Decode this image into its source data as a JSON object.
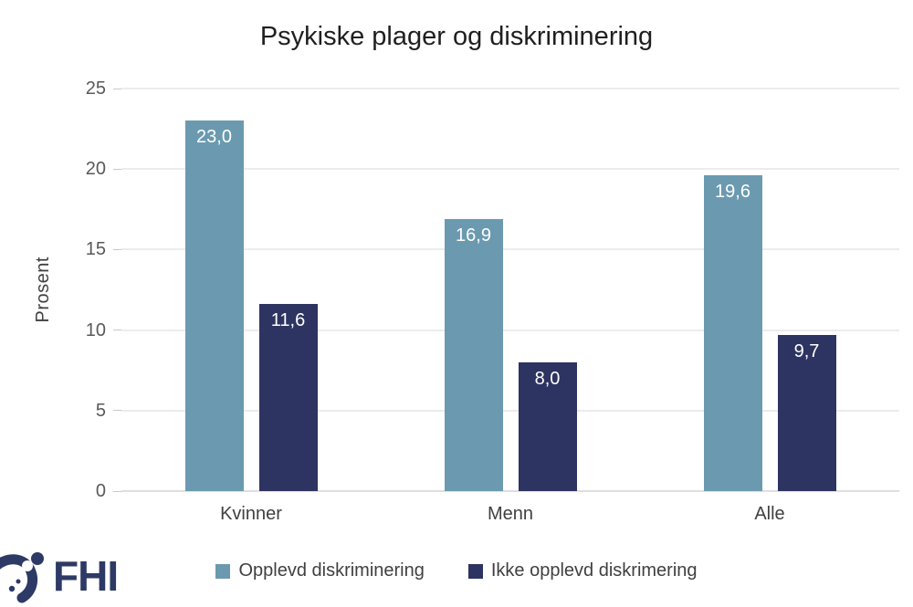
{
  "title": "Psykiske plager og diskriminering",
  "chart_data": {
    "type": "bar",
    "categories": [
      "Kvinner",
      "Menn",
      "Alle"
    ],
    "series": [
      {
        "name": "Opplevd diskriminering",
        "color": "#6b9ab0",
        "values": [
          23.0,
          16.9,
          19.6
        ],
        "value_labels": [
          "23,0",
          "16,9",
          "19,6"
        ]
      },
      {
        "name": "Ikke opplevd diskrimering",
        "color": "#2d3461",
        "values": [
          11.6,
          8.0,
          9.7
        ],
        "value_labels": [
          "11,6",
          "8,0",
          "9,7"
        ]
      }
    ],
    "ylabel": "Prosent",
    "ylim": [
      0,
      25
    ],
    "yticks": [
      0,
      5,
      10,
      15,
      20,
      25
    ],
    "grid": true,
    "legend_position": "bottom"
  },
  "logo": {
    "text": "FHI",
    "color": "#2d3a66"
  },
  "style": {
    "gridline_color": "#d9d9d9",
    "tick_text_color": "#595959",
    "axis_text_color": "#404040",
    "title_color": "#1f1f1f"
  }
}
